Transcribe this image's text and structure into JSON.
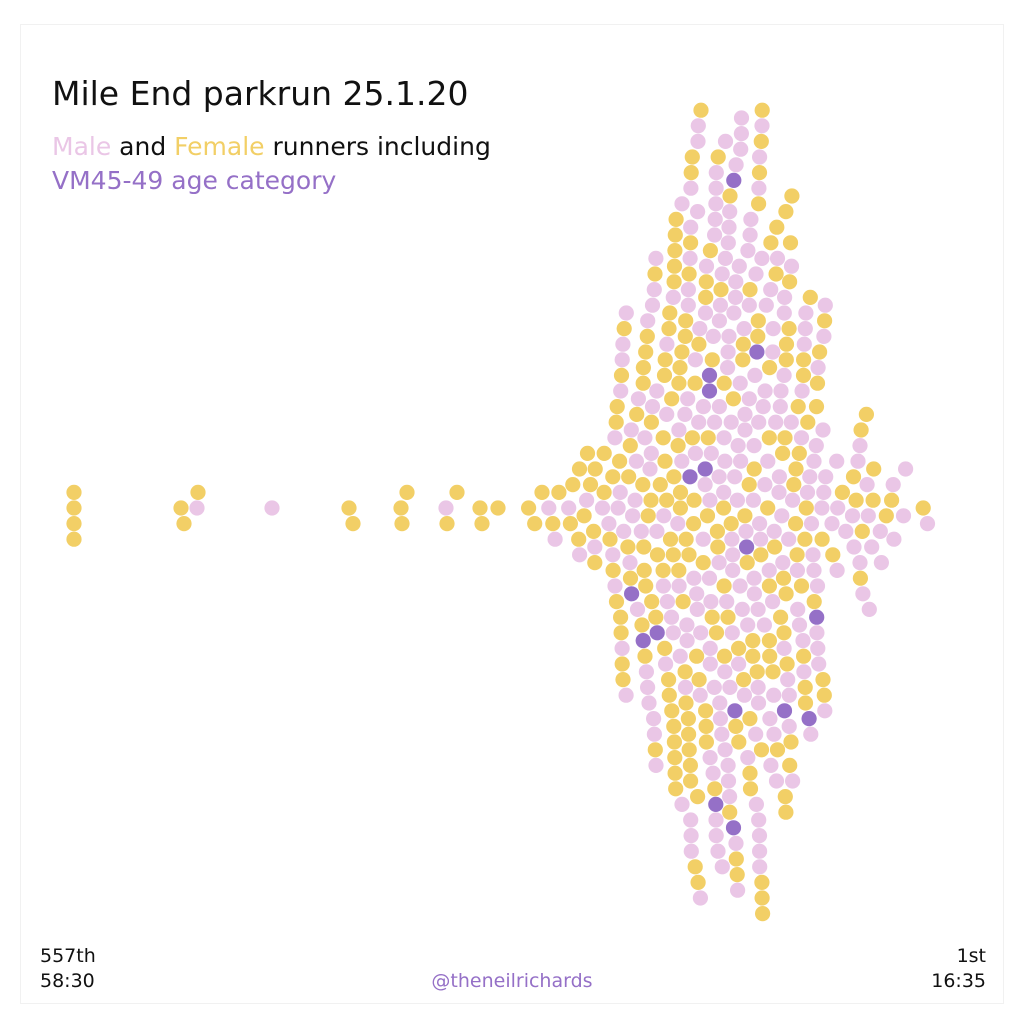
{
  "title": "Mile End parkrun 25.1.20",
  "subtitle": {
    "male_word": "Male",
    "and_word": " and ",
    "female_word": "Female",
    "rest": " runners including",
    "category_line": "VM45-49 age category"
  },
  "footer": {
    "left_position": "557th",
    "left_time": "58:30",
    "right_position": "1st",
    "right_time": "16:35",
    "credit": "@theneilrichards"
  },
  "chart_data": {
    "type": "scatter",
    "layout": "beeswarm",
    "x_axis": "finish time",
    "x_direction": "slowest at left, fastest at right",
    "x_range_labels": [
      "58:30",
      "16:35"
    ],
    "total_runners": 557,
    "groups": [
      {
        "name": "Male",
        "color": "#eac6e6"
      },
      {
        "name": "Female",
        "color": "#f2cf66"
      },
      {
        "name": "VM45-49",
        "color": "#9570c7"
      }
    ]
  }
}
